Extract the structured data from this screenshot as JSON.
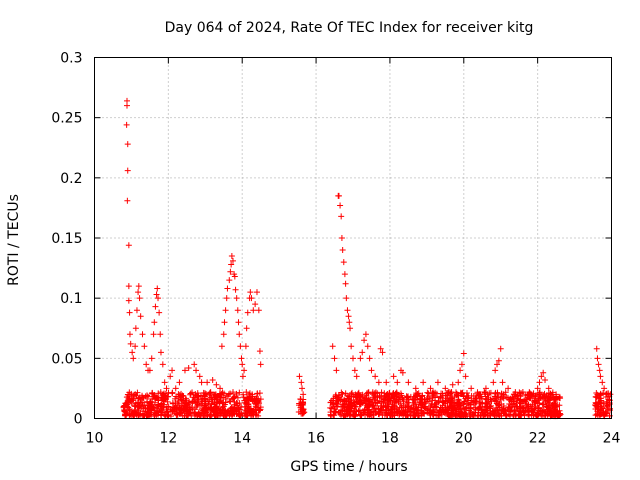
{
  "chart_data": {
    "type": "scatter",
    "title": "Day 064 of 2024, Rate Of TEC Index for receiver kitg",
    "xlabel": "GPS time / hours",
    "ylabel": "ROTI / TECUs",
    "xlim": [
      10,
      24
    ],
    "ylim": [
      0,
      0.3
    ],
    "xticks": [
      10,
      12,
      14,
      16,
      18,
      20,
      22,
      24
    ],
    "xtick_labels": [
      "10",
      "12",
      "14",
      "16",
      "18",
      "20",
      "22",
      "24"
    ],
    "yticks": [
      0,
      0.05,
      0.1,
      0.15,
      0.2,
      0.25,
      0.3
    ],
    "ytick_labels": [
      "0",
      "0.05",
      "0.1",
      "0.15",
      "0.2",
      "0.25",
      "0.3"
    ],
    "grid": true,
    "marker": "+",
    "color": "#ff0000",
    "series": [
      {
        "name": "ROTI",
        "points": [
          [
            10.88,
            0.264
          ],
          [
            10.88,
            0.26
          ],
          [
            10.87,
            0.244
          ],
          [
            10.9,
            0.228
          ],
          [
            10.9,
            0.206
          ],
          [
            10.89,
            0.181
          ],
          [
            10.93,
            0.144
          ],
          [
            10.93,
            0.11
          ],
          [
            10.93,
            0.098
          ],
          [
            10.95,
            0.088
          ],
          [
            10.96,
            0.07
          ],
          [
            10.98,
            0.062
          ],
          [
            11.02,
            0.055
          ],
          [
            11.05,
            0.05
          ],
          [
            11.1,
            0.06
          ],
          [
            11.12,
            0.075
          ],
          [
            11.15,
            0.09
          ],
          [
            11.18,
            0.105
          ],
          [
            11.2,
            0.11
          ],
          [
            11.22,
            0.1
          ],
          [
            11.25,
            0.085
          ],
          [
            11.3,
            0.07
          ],
          [
            11.35,
            0.06
          ],
          [
            11.4,
            0.045
          ],
          [
            11.45,
            0.04
          ],
          [
            11.5,
            0.04
          ],
          [
            11.55,
            0.05
          ],
          [
            11.6,
            0.07
          ],
          [
            11.62,
            0.08
          ],
          [
            11.65,
            0.093
          ],
          [
            11.68,
            0.103
          ],
          [
            11.7,
            0.108
          ],
          [
            11.72,
            0.1
          ],
          [
            11.75,
            0.088
          ],
          [
            11.78,
            0.07
          ],
          [
            11.8,
            0.055
          ],
          [
            11.85,
            0.045
          ],
          [
            11.9,
            0.03
          ],
          [
            11.95,
            0.025
          ],
          [
            12.05,
            0.035
          ],
          [
            12.1,
            0.04
          ],
          [
            12.2,
            0.025
          ],
          [
            12.3,
            0.03
          ],
          [
            12.45,
            0.04
          ],
          [
            12.55,
            0.042
          ],
          [
            12.7,
            0.045
          ],
          [
            12.75,
            0.04
          ],
          [
            12.85,
            0.035
          ],
          [
            12.9,
            0.03
          ],
          [
            13.05,
            0.03
          ],
          [
            13.2,
            0.032
          ],
          [
            13.3,
            0.028
          ],
          [
            13.4,
            0.025
          ],
          [
            13.45,
            0.06
          ],
          [
            13.5,
            0.07
          ],
          [
            13.52,
            0.08
          ],
          [
            13.55,
            0.09
          ],
          [
            13.58,
            0.1
          ],
          [
            13.6,
            0.108
          ],
          [
            13.65,
            0.115
          ],
          [
            13.68,
            0.122
          ],
          [
            13.7,
            0.128
          ],
          [
            13.72,
            0.135
          ],
          [
            13.75,
            0.131
          ],
          [
            13.78,
            0.12
          ],
          [
            13.8,
            0.118
          ],
          [
            13.82,
            0.107
          ],
          [
            13.85,
            0.1
          ],
          [
            13.88,
            0.09
          ],
          [
            13.9,
            0.08
          ],
          [
            13.92,
            0.07
          ],
          [
            13.95,
            0.06
          ],
          [
            13.98,
            0.05
          ],
          [
            14.0,
            0.045
          ],
          [
            14.02,
            0.035
          ],
          [
            14.05,
            0.04
          ],
          [
            14.1,
            0.06
          ],
          [
            14.12,
            0.075
          ],
          [
            14.15,
            0.088
          ],
          [
            14.2,
            0.1
          ],
          [
            14.22,
            0.105
          ],
          [
            14.25,
            0.1
          ],
          [
            14.3,
            0.09
          ],
          [
            14.35,
            0.095
          ],
          [
            14.4,
            0.105
          ],
          [
            14.45,
            0.09
          ],
          [
            14.48,
            0.056
          ],
          [
            14.5,
            0.045
          ],
          [
            15.55,
            0.035
          ],
          [
            15.6,
            0.03
          ],
          [
            15.62,
            0.025
          ],
          [
            15.65,
            0.02
          ],
          [
            16.45,
            0.06
          ],
          [
            16.5,
            0.05
          ],
          [
            16.55,
            0.04
          ],
          [
            16.6,
            0.185
          ],
          [
            16.62,
            0.185
          ],
          [
            16.65,
            0.177
          ],
          [
            16.68,
            0.168
          ],
          [
            16.7,
            0.15
          ],
          [
            16.72,
            0.14
          ],
          [
            16.75,
            0.13
          ],
          [
            16.78,
            0.12
          ],
          [
            16.8,
            0.112
          ],
          [
            16.82,
            0.1
          ],
          [
            16.85,
            0.09
          ],
          [
            16.88,
            0.085
          ],
          [
            16.9,
            0.08
          ],
          [
            16.92,
            0.075
          ],
          [
            16.95,
            0.06
          ],
          [
            17.0,
            0.05
          ],
          [
            17.05,
            0.04
          ],
          [
            17.1,
            0.035
          ],
          [
            17.2,
            0.05
          ],
          [
            17.25,
            0.055
          ],
          [
            17.3,
            0.065
          ],
          [
            17.35,
            0.07
          ],
          [
            17.4,
            0.06
          ],
          [
            17.45,
            0.05
          ],
          [
            17.5,
            0.04
          ],
          [
            17.6,
            0.035
          ],
          [
            17.7,
            0.03
          ],
          [
            17.75,
            0.058
          ],
          [
            17.8,
            0.055
          ],
          [
            17.9,
            0.03
          ],
          [
            18.1,
            0.035
          ],
          [
            18.2,
            0.03
          ],
          [
            18.3,
            0.04
          ],
          [
            18.35,
            0.038
          ],
          [
            18.5,
            0.03
          ],
          [
            18.7,
            0.025
          ],
          [
            18.9,
            0.03
          ],
          [
            19.1,
            0.025
          ],
          [
            19.3,
            0.03
          ],
          [
            19.5,
            0.025
          ],
          [
            19.7,
            0.028
          ],
          [
            19.85,
            0.03
          ],
          [
            19.9,
            0.04
          ],
          [
            19.95,
            0.045
          ],
          [
            20.0,
            0.054
          ],
          [
            20.05,
            0.035
          ],
          [
            20.2,
            0.025
          ],
          [
            20.4,
            0.02
          ],
          [
            20.6,
            0.025
          ],
          [
            20.8,
            0.03
          ],
          [
            20.85,
            0.04
          ],
          [
            20.9,
            0.045
          ],
          [
            20.95,
            0.048
          ],
          [
            21.0,
            0.058
          ],
          [
            21.05,
            0.03
          ],
          [
            21.2,
            0.025
          ],
          [
            21.4,
            0.02
          ],
          [
            21.6,
            0.022
          ],
          [
            21.8,
            0.02
          ],
          [
            22.0,
            0.025
          ],
          [
            22.05,
            0.03
          ],
          [
            22.1,
            0.035
          ],
          [
            22.15,
            0.038
          ],
          [
            22.2,
            0.032
          ],
          [
            22.3,
            0.025
          ],
          [
            22.5,
            0.02
          ],
          [
            22.6,
            0.018
          ],
          [
            23.6,
            0.058
          ],
          [
            23.62,
            0.05
          ],
          [
            23.65,
            0.045
          ],
          [
            23.68,
            0.04
          ],
          [
            23.7,
            0.035
          ],
          [
            23.75,
            0.03
          ],
          [
            23.8,
            0.025
          ],
          [
            23.85,
            0.02
          ],
          [
            23.9,
            0.018
          ],
          [
            23.95,
            0.015
          ]
        ],
        "dense_bands": [
          {
            "x_range": [
              10.78,
              14.52
            ],
            "y_range": [
              0.002,
              0.022
            ]
          },
          {
            "x_range": [
              15.52,
              15.68
            ],
            "y_range": [
              0.004,
              0.018
            ]
          },
          {
            "x_range": [
              16.38,
              22.62
            ],
            "y_range": [
              0.002,
              0.022
            ]
          },
          {
            "x_range": [
              23.55,
              23.98
            ],
            "y_range": [
              0.002,
              0.022
            ]
          }
        ]
      }
    ]
  }
}
